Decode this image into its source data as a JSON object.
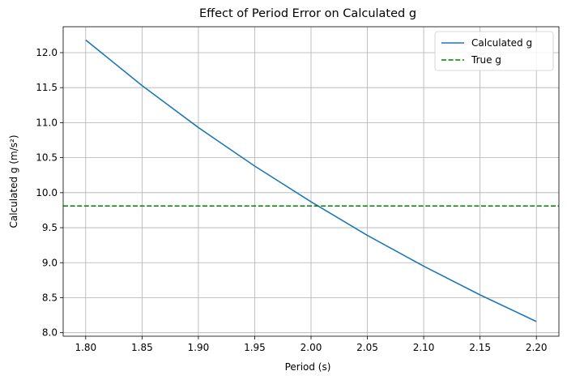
{
  "chart_data": {
    "type": "line",
    "title": "Effect of Period Error on Calculated g",
    "xlabel": "Period (s)",
    "ylabel": "Calculated g (m/s²)",
    "xlim": [
      1.78,
      2.22
    ],
    "ylim": [
      7.95,
      12.37
    ],
    "x_ticks": [
      "1.80",
      "1.85",
      "1.90",
      "1.95",
      "2.00",
      "2.05",
      "2.10",
      "2.15",
      "2.20"
    ],
    "y_ticks": [
      "8.0",
      "8.5",
      "9.0",
      "9.5",
      "10.0",
      "10.5",
      "11.0",
      "11.5",
      "12.0"
    ],
    "grid": true,
    "legend_position": "top-right",
    "series": [
      {
        "name": "Calculated g",
        "style": "solid",
        "color": "#1f77b4",
        "x": [
          1.8,
          1.85,
          1.9,
          1.95,
          2.0,
          2.05,
          2.1,
          2.15,
          2.2
        ],
        "y": [
          12.18,
          11.53,
          10.93,
          10.38,
          9.87,
          9.39,
          8.95,
          8.54,
          8.16
        ]
      },
      {
        "name": "True g",
        "style": "dashed",
        "color": "#008000",
        "y_constant": 9.81
      }
    ]
  }
}
